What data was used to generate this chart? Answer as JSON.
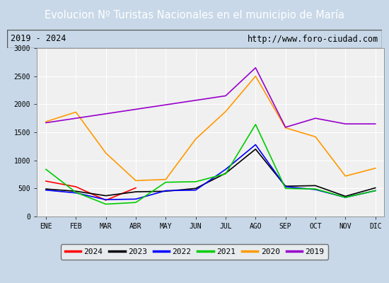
{
  "title": "Evolucion Nº Turistas Nacionales en el municipio de María",
  "subtitle_left": "2019 - 2024",
  "subtitle_right": "http://www.foro-ciudad.com",
  "xlabel_months": [
    "ENE",
    "FEB",
    "MAR",
    "ABR",
    "MAY",
    "JUN",
    "JUL",
    "AGO",
    "SEP",
    "OCT",
    "NOV",
    "DIC"
  ],
  "ylim": [
    0,
    3000
  ],
  "yticks": [
    0,
    500,
    1000,
    1500,
    2000,
    2500,
    3000
  ],
  "series": {
    "2024": {
      "color": "#ff0000",
      "data": [
        630,
        530,
        290,
        510,
        null,
        null,
        null,
        null,
        null,
        null,
        null,
        null
      ]
    },
    "2023": {
      "color": "#000000",
      "data": [
        490,
        450,
        370,
        440,
        450,
        500,
        770,
        1200,
        540,
        550,
        360,
        510
      ]
    },
    "2022": {
      "color": "#0000ff",
      "data": [
        470,
        420,
        300,
        310,
        460,
        470,
        840,
        1280,
        530,
        480,
        340,
        460
      ]
    },
    "2021": {
      "color": "#00cc00",
      "data": [
        840,
        430,
        220,
        250,
        610,
        620,
        760,
        1640,
        500,
        490,
        340,
        460
      ]
    },
    "2020": {
      "color": "#ff9900",
      "data": [
        1690,
        1860,
        1130,
        640,
        660,
        1380,
        1870,
        2500,
        1580,
        1420,
        720,
        860
      ]
    },
    "2019": {
      "color": "#9900cc",
      "data": [
        1670,
        null,
        null,
        null,
        null,
        null,
        2150,
        2650,
        1590,
        1750,
        1650,
        1650
      ]
    }
  },
  "title_bg_color": "#4472c4",
  "title_text_color": "#ffffff",
  "plot_bg_color": "#f0f0f0",
  "subtitle_bg_color": "#e8e8e8",
  "outer_bg_color": "#c8d8e8",
  "grid_color": "#ffffff",
  "legend_order": [
    "2024",
    "2023",
    "2022",
    "2021",
    "2020",
    "2019"
  ]
}
